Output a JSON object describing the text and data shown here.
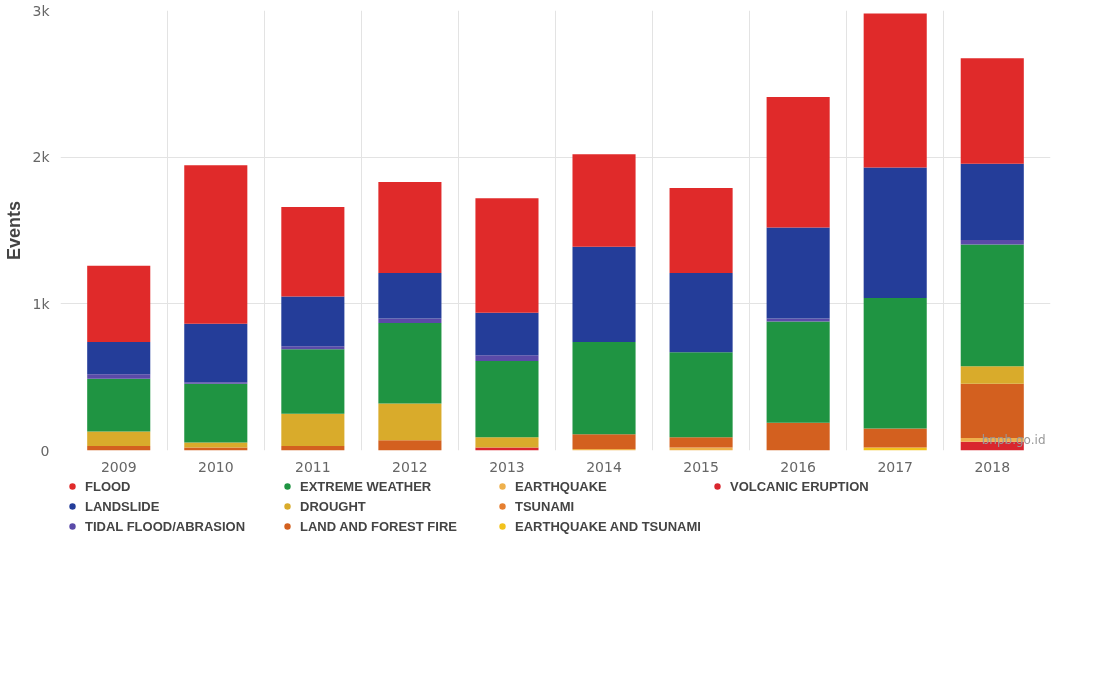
{
  "chart_data": {
    "type": "bar",
    "stacked": true,
    "ylabel": "Events",
    "categories": [
      "2009",
      "2010",
      "2011",
      "2012",
      "2013",
      "2014",
      "2015",
      "2016",
      "2017",
      "2018"
    ],
    "ylim": [
      0,
      3000
    ],
    "yticks": [
      0,
      {
        "value": 1000,
        "label": "1k"
      },
      {
        "value": 2000,
        "label": "2k"
      },
      {
        "value": 3000,
        "label": "3k"
      }
    ],
    "grid": true,
    "legend": "bottom",
    "series": [
      {
        "name": "VOLCANIC ERUPTION",
        "color": "#d9262e",
        "values": [
          0,
          0,
          0,
          0,
          20,
          0,
          0,
          0,
          0,
          60
        ]
      },
      {
        "name": "EARTHQUAKE AND TSUNAMI",
        "color": "#f2c21c",
        "values": [
          0,
          0,
          0,
          0,
          0,
          0,
          0,
          0,
          20,
          0
        ]
      },
      {
        "name": "TSUNAMI",
        "color": "#e57f30",
        "values": [
          0,
          0,
          0,
          0,
          0,
          0,
          0,
          0,
          0,
          0
        ]
      },
      {
        "name": "EARTHQUAKE",
        "color": "#eeb04c",
        "values": [
          0,
          0,
          0,
          0,
          0,
          10,
          20,
          0,
          0,
          25
        ]
      },
      {
        "name": "LAND AND FOREST FIRE",
        "color": "#d3601f",
        "values": [
          30,
          20,
          30,
          70,
          0,
          100,
          70,
          190,
          130,
          370
        ]
      },
      {
        "name": "DROUGHT",
        "color": "#d9ab2b",
        "values": [
          100,
          35,
          220,
          250,
          70,
          0,
          0,
          0,
          0,
          120
        ]
      },
      {
        "name": "EXTREME WEATHER",
        "color": "#1f9442",
        "values": [
          360,
          400,
          440,
          550,
          520,
          630,
          580,
          690,
          890,
          830
        ]
      },
      {
        "name": "TIDAL FLOOD/ABRASION",
        "color": "#5a4aa8",
        "values": [
          30,
          10,
          20,
          30,
          40,
          0,
          0,
          20,
          0,
          30
        ]
      },
      {
        "name": "LANDSLIDE",
        "color": "#243d99",
        "values": [
          220,
          400,
          340,
          310,
          290,
          650,
          540,
          620,
          890,
          520
        ]
      },
      {
        "name": "FLOOD",
        "color": "#e02a2a",
        "values": [
          520,
          1080,
          610,
          620,
          780,
          630,
          580,
          890,
          1050,
          720
        ]
      }
    ],
    "annotations": [
      "bnpb.go.id"
    ]
  }
}
